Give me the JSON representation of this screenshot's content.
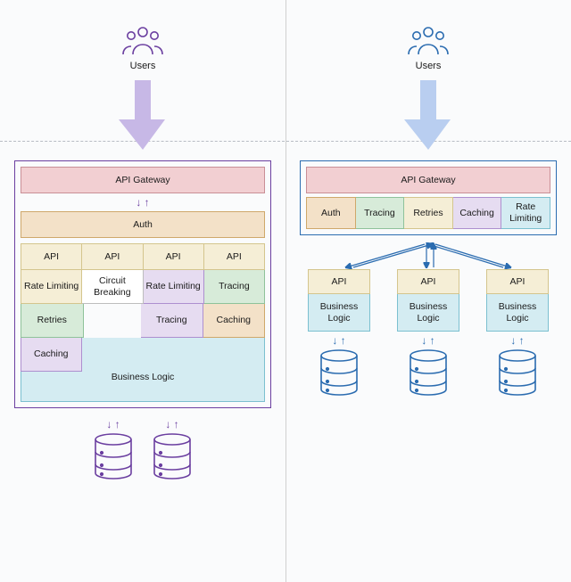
{
  "colors": {
    "purple": "#6b3fa0",
    "blue": "#2b6cb0",
    "arrow_purple": "#c7b8e6",
    "arrow_blue": "#b9cef0",
    "pink_fill": "#f2cfd2",
    "pink_border": "#c98f96",
    "peach_fill": "#f3e1c8",
    "peach_border": "#cfa86b",
    "cream_fill": "#f5eed6",
    "cream_border": "#d4c58d",
    "white_fill": "#ffffff",
    "white_border": "#bdbdbd",
    "lilac_fill": "#e6dcf1",
    "lilac_border": "#ad8fcf",
    "green_fill": "#d7ebd9",
    "green_border": "#8fc29a",
    "cyan_fill": "#d4ecf2",
    "cyan_border": "#7cc0d0",
    "dash": "#b8bcc4"
  },
  "fonts": {
    "label_pt": 11,
    "box_pt": 10.5
  },
  "left": {
    "users": "Users",
    "api_gateway": "API Gateway",
    "auth": "Auth",
    "api_row": [
      "API",
      "API",
      "API",
      "API"
    ],
    "layer1": [
      "Rate Limiting",
      "Circuit Breaking",
      "Rate Limiting",
      "Tracing"
    ],
    "layer2": [
      "Retries",
      "Tracing",
      "Caching"
    ],
    "caching": "Caching",
    "business_logic": "Business Logic"
  },
  "right": {
    "users": "Users",
    "api_gateway": "API Gateway",
    "policies": [
      "Auth",
      "Tracing",
      "Retries",
      "Caching",
      "Rate Limiting"
    ],
    "policy_colors": [
      "peach",
      "green",
      "cream",
      "lilac",
      "cyan"
    ],
    "services": [
      {
        "api": "API",
        "bl": "Business Logic"
      },
      {
        "api": "API",
        "bl": "Business Logic"
      },
      {
        "api": "API",
        "bl": "Business Logic"
      }
    ]
  }
}
